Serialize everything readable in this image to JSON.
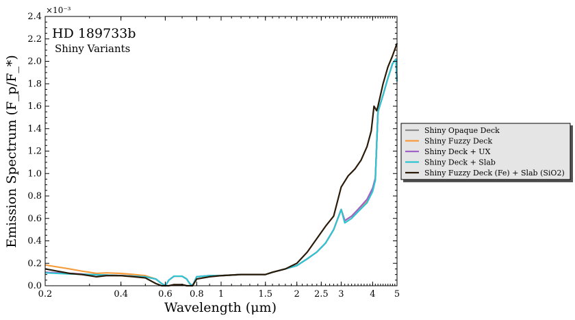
{
  "chart_data": {
    "type": "line",
    "title": "HD 189733b",
    "subtitle": "Shiny Variants",
    "xlabel": "Wavelength (μm)",
    "ylabel": "Emission Spectrum (F_p/F_*)",
    "y_multiplier": "×10⁻³",
    "x_scale": "log",
    "xlim": [
      0.2,
      5.0
    ],
    "ylim": [
      0.0,
      2.4
    ],
    "x_ticks": [
      0.2,
      0.4,
      0.6,
      0.8,
      1.0,
      1.5,
      2.0,
      2.5,
      3.0,
      4.0,
      5.0
    ],
    "x_tick_labels": [
      "0.2",
      "0.4",
      "0.6",
      "0.8",
      "1",
      "1.5",
      "2",
      "2.5",
      "3",
      "4",
      "5"
    ],
    "y_ticks": [
      0.0,
      0.2,
      0.4,
      0.6,
      0.8,
      1.0,
      1.2,
      1.4,
      1.6,
      1.8,
      2.0,
      2.2,
      2.4
    ],
    "y_tick_labels": [
      "0.0",
      "0.2",
      "0.4",
      "0.6",
      "0.8",
      "1.0",
      "1.2",
      "1.4",
      "1.6",
      "1.8",
      "2.0",
      "2.2",
      "2.4"
    ],
    "legend_position": "outside-right",
    "series": [
      {
        "name": "Shiny Opaque Deck",
        "color": "#8c8c8c",
        "x": [
          0.2,
          0.25,
          0.3,
          0.35,
          0.4,
          0.45,
          0.5,
          0.55,
          0.58,
          0.6,
          0.62,
          0.65,
          0.7,
          0.73,
          0.75,
          0.77,
          0.8,
          0.9,
          1.0,
          1.2,
          1.4,
          1.5,
          1.6,
          1.8,
          2.0,
          2.2,
          2.4,
          2.6,
          2.8,
          3.0,
          3.1,
          3.3,
          3.5,
          3.8,
          4.0,
          4.1,
          4.2,
          4.4,
          4.6,
          4.8,
          4.95,
          5.0
        ],
        "y": [
          0.12,
          0.11,
          0.1,
          0.095,
          0.09,
          0.085,
          0.08,
          0.06,
          0.02,
          0.0,
          0.05,
          0.085,
          0.085,
          0.06,
          0.02,
          0.0,
          0.08,
          0.09,
          0.09,
          0.1,
          0.1,
          0.1,
          0.12,
          0.15,
          0.18,
          0.24,
          0.3,
          0.38,
          0.5,
          0.68,
          0.58,
          0.62,
          0.68,
          0.76,
          0.85,
          0.95,
          1.55,
          1.7,
          1.85,
          1.98,
          2.02,
          1.82
        ]
      },
      {
        "name": "Shiny Fuzzy Deck",
        "color": "#f59c3c",
        "x": [
          0.2,
          0.25,
          0.28,
          0.3,
          0.32,
          0.35,
          0.4,
          0.45,
          0.5,
          0.55,
          0.58,
          0.6,
          0.62,
          0.65,
          0.7,
          0.73,
          0.75,
          0.77,
          0.8,
          0.9,
          1.0,
          1.2,
          1.4,
          1.5,
          1.6,
          1.8,
          2.0,
          2.2,
          2.4,
          2.6,
          2.8,
          3.0,
          3.1,
          3.3,
          3.5,
          3.8,
          4.0,
          4.1,
          4.2,
          4.4,
          4.6,
          4.8,
          4.95,
          5.0
        ],
        "y": [
          0.185,
          0.15,
          0.13,
          0.12,
          0.11,
          0.115,
          0.11,
          0.1,
          0.09,
          0.06,
          0.02,
          0.0,
          0.05,
          0.085,
          0.085,
          0.06,
          0.02,
          0.0,
          0.08,
          0.09,
          0.09,
          0.1,
          0.1,
          0.1,
          0.12,
          0.15,
          0.18,
          0.24,
          0.3,
          0.38,
          0.5,
          0.68,
          0.58,
          0.62,
          0.68,
          0.76,
          0.85,
          0.95,
          1.55,
          1.7,
          1.85,
          1.98,
          2.02,
          1.82
        ]
      },
      {
        "name": "Shiny Deck + UX",
        "color": "#a064c8",
        "x": [
          0.2,
          0.25,
          0.3,
          0.35,
          0.4,
          0.45,
          0.5,
          0.55,
          0.58,
          0.6,
          0.62,
          0.65,
          0.7,
          0.73,
          0.75,
          0.77,
          0.8,
          0.9,
          1.0,
          1.2,
          1.4,
          1.5,
          1.6,
          1.8,
          2.0,
          2.2,
          2.4,
          2.6,
          2.8,
          3.0,
          3.1,
          3.3,
          3.5,
          3.8,
          4.0,
          4.1,
          4.2,
          4.4,
          4.6,
          4.8,
          4.95,
          5.0
        ],
        "y": [
          0.12,
          0.11,
          0.1,
          0.095,
          0.09,
          0.085,
          0.08,
          0.06,
          0.02,
          0.0,
          0.05,
          0.085,
          0.085,
          0.06,
          0.02,
          0.0,
          0.08,
          0.09,
          0.09,
          0.1,
          0.1,
          0.1,
          0.12,
          0.15,
          0.18,
          0.24,
          0.3,
          0.38,
          0.5,
          0.68,
          0.58,
          0.62,
          0.68,
          0.77,
          0.87,
          0.96,
          1.55,
          1.7,
          1.85,
          1.98,
          2.02,
          1.82
        ]
      },
      {
        "name": "Shiny Deck + Slab",
        "color": "#2ec4d0",
        "x": [
          0.2,
          0.25,
          0.3,
          0.35,
          0.4,
          0.45,
          0.5,
          0.55,
          0.58,
          0.6,
          0.62,
          0.65,
          0.7,
          0.73,
          0.75,
          0.77,
          0.8,
          0.9,
          1.0,
          1.2,
          1.4,
          1.5,
          1.6,
          1.8,
          2.0,
          2.2,
          2.4,
          2.6,
          2.8,
          3.0,
          3.1,
          3.3,
          3.5,
          3.8,
          4.0,
          4.1,
          4.2,
          4.4,
          4.6,
          4.8,
          4.95,
          5.0
        ],
        "y": [
          0.115,
          0.105,
          0.1,
          0.095,
          0.09,
          0.085,
          0.08,
          0.06,
          0.02,
          0.0,
          0.05,
          0.085,
          0.085,
          0.06,
          0.02,
          0.0,
          0.08,
          0.09,
          0.09,
          0.1,
          0.1,
          0.1,
          0.12,
          0.15,
          0.18,
          0.24,
          0.3,
          0.38,
          0.5,
          0.68,
          0.56,
          0.6,
          0.66,
          0.74,
          0.84,
          0.94,
          1.55,
          1.7,
          1.85,
          1.98,
          2.02,
          1.82
        ]
      },
      {
        "name": "Shiny Fuzzy Deck (Fe) + Slab (SiO2)",
        "color": "#2a1a08",
        "x": [
          0.2,
          0.25,
          0.28,
          0.3,
          0.32,
          0.35,
          0.38,
          0.4,
          0.45,
          0.5,
          0.55,
          0.58,
          0.6,
          0.62,
          0.65,
          0.7,
          0.73,
          0.75,
          0.77,
          0.8,
          0.9,
          1.0,
          1.2,
          1.4,
          1.5,
          1.6,
          1.8,
          2.0,
          2.2,
          2.4,
          2.6,
          2.8,
          3.0,
          3.2,
          3.4,
          3.6,
          3.8,
          3.95,
          4.05,
          4.15,
          4.2,
          4.4,
          4.6,
          4.8,
          5.0
        ],
        "y": [
          0.15,
          0.11,
          0.1,
          0.09,
          0.08,
          0.09,
          0.09,
          0.09,
          0.08,
          0.07,
          0.02,
          0.0,
          0.0,
          0.0,
          0.01,
          0.01,
          0.0,
          0.0,
          0.0,
          0.06,
          0.08,
          0.09,
          0.1,
          0.1,
          0.1,
          0.12,
          0.15,
          0.2,
          0.3,
          0.42,
          0.53,
          0.62,
          0.88,
          0.98,
          1.04,
          1.12,
          1.24,
          1.38,
          1.6,
          1.56,
          1.6,
          1.8,
          1.95,
          2.05,
          2.16
        ]
      }
    ]
  }
}
